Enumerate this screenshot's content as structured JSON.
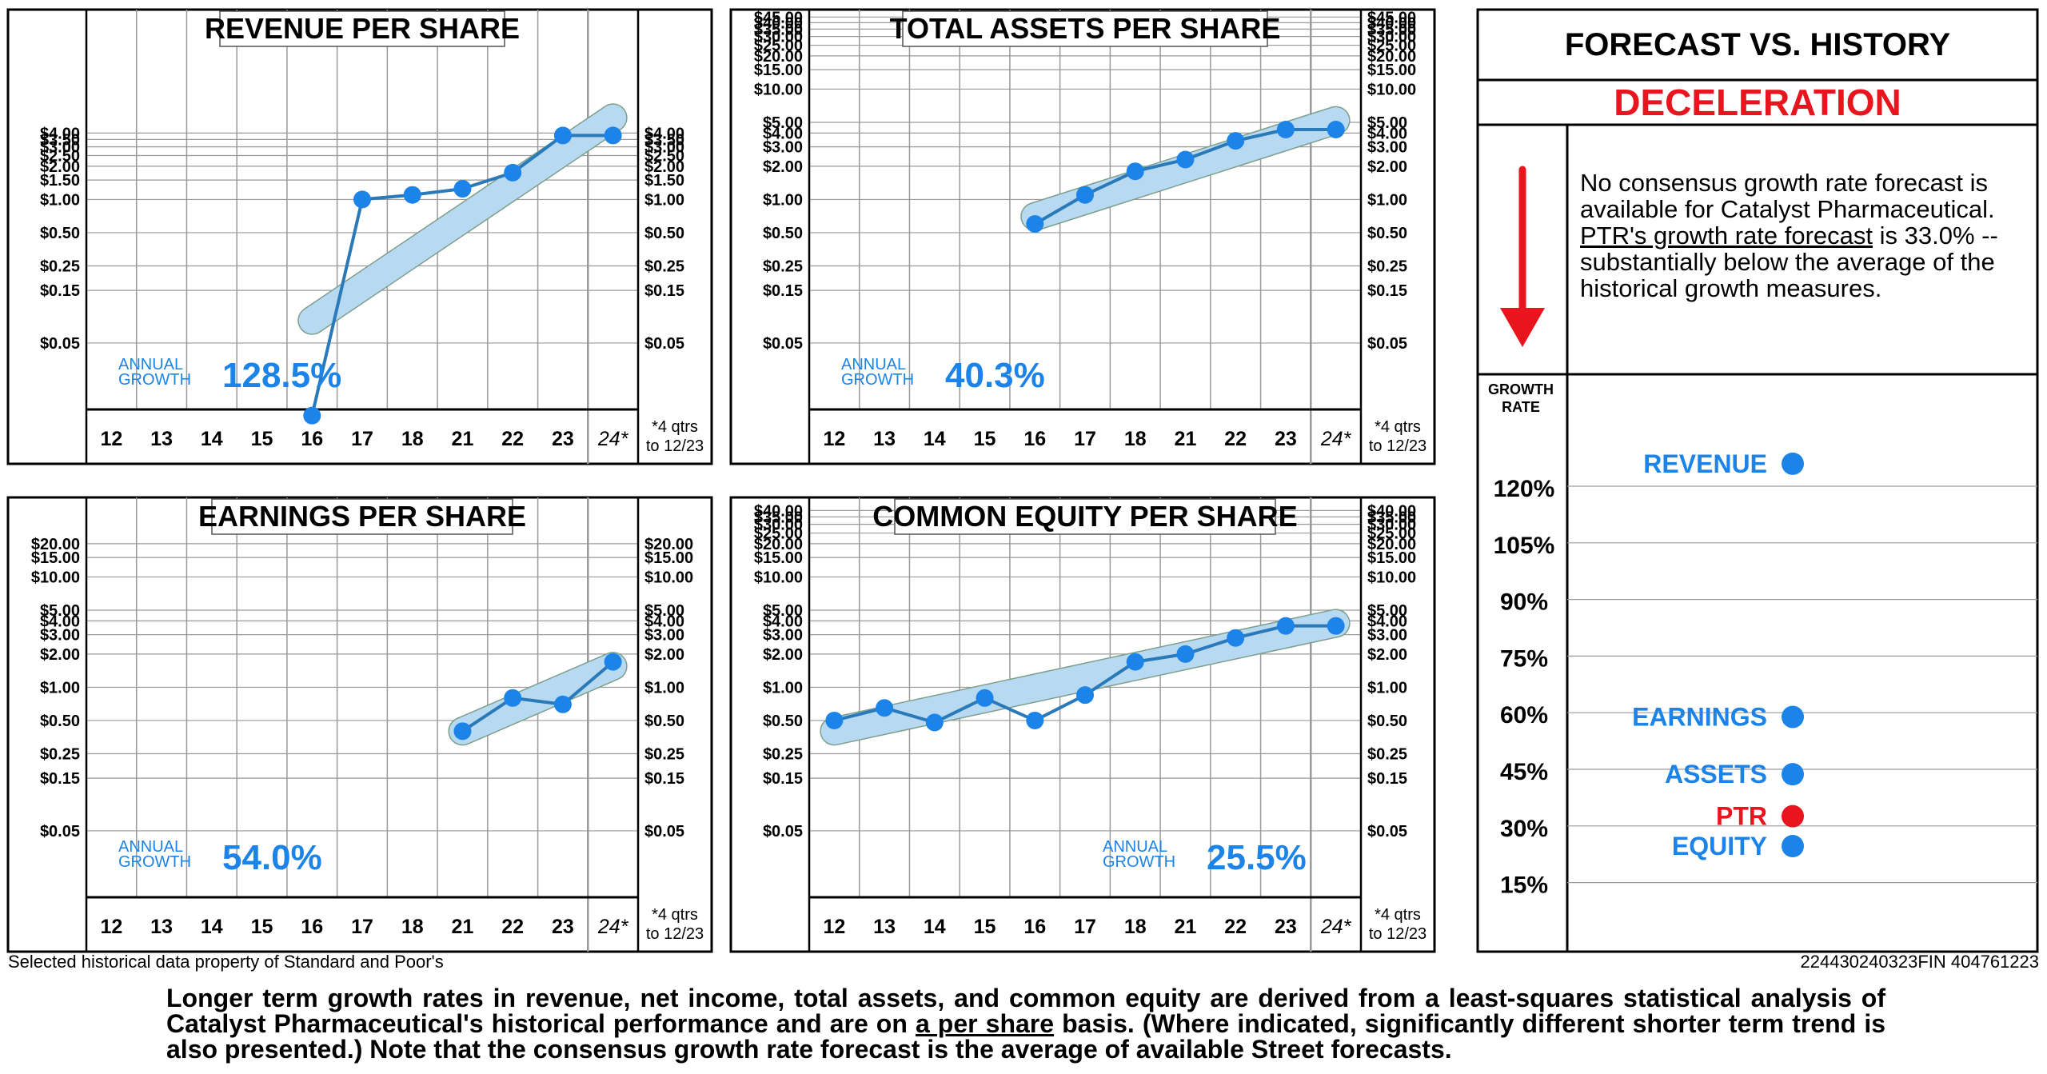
{
  "colors": {
    "accent": "#1c83e8",
    "line": "#2a79b8",
    "band": "#b7d9f2",
    "red": "#e8141e",
    "grid": "#9a9a9a"
  },
  "common": {
    "x_labels": [
      "12",
      "13",
      "14",
      "15",
      "16",
      "17",
      "18",
      "21",
      "22",
      "23",
      "24*"
    ],
    "note_line1": "*4 qtrs",
    "note_line2": "to 12/23",
    "growth_label_line1": "ANNUAL",
    "growth_label_line2": "GROWTH"
  },
  "chart_data": [
    {
      "type": "line",
      "id": "revenue",
      "title": "REVENUE PER SHARE",
      "yscale": "log",
      "tick_labels": [
        "$4.00",
        "$3.50",
        "$3.00",
        "$2.50",
        "$2.00",
        "$1.50",
        "$1.00",
        "$0.50",
        "$0.25",
        "$0.15",
        "$0.05"
      ],
      "x": [
        "16",
        "17",
        "18",
        "21",
        "22",
        "23",
        "24*"
      ],
      "y": [
        0.011,
        1.0,
        1.1,
        1.25,
        1.75,
        3.8,
        3.8
      ],
      "trend": [
        0.08,
        5.5
      ],
      "growth": "128.5%"
    },
    {
      "type": "line",
      "id": "assets",
      "title": "TOTAL ASSETS PER SHARE",
      "yscale": "log",
      "tick_labels": [
        "$45.00",
        "$40.00",
        "$35.00",
        "$30.00",
        "$25.00",
        "$20.00",
        "$15.00",
        "$10.00",
        "$5.00",
        "$4.00",
        "$3.00",
        "$2.00",
        "$1.00",
        "$0.50",
        "$0.25",
        "$0.15",
        "$0.05"
      ],
      "x": [
        "16",
        "17",
        "18",
        "21",
        "22",
        "23",
        "24*"
      ],
      "y": [
        0.6,
        1.1,
        1.8,
        2.3,
        3.4,
        4.3,
        4.3
      ],
      "trend": [
        0.7,
        5.2
      ],
      "growth": "40.3%"
    },
    {
      "type": "line",
      "id": "earnings",
      "title": "EARNINGS PER SHARE",
      "yscale": "log",
      "tick_labels": [
        "$20.00",
        "$15.00",
        "$10.00",
        "$5.00",
        "$4.00",
        "$3.00",
        "$2.00",
        "$1.00",
        "$0.50",
        "$0.25",
        "$0.15",
        "$0.05"
      ],
      "x": [
        "21",
        "22",
        "23",
        "24*"
      ],
      "y": [
        0.4,
        0.8,
        0.7,
        1.7
      ],
      "trend": [
        0.4,
        1.55
      ],
      "growth": "54.0%"
    },
    {
      "type": "line",
      "id": "equity",
      "title": "COMMON EQUITY PER SHARE",
      "yscale": "log",
      "tick_labels": [
        "$40.00",
        "$35.00",
        "$30.00",
        "$25.00",
        "$20.00",
        "$15.00",
        "$10.00",
        "$5.00",
        "$4.00",
        "$3.00",
        "$2.00",
        "$1.00",
        "$0.50",
        "$0.25",
        "$0.15",
        "$0.05"
      ],
      "x": [
        "12",
        "13",
        "14",
        "15",
        "16",
        "17",
        "18",
        "21",
        "22",
        "23",
        "24*"
      ],
      "y": [
        0.5,
        0.65,
        0.48,
        0.8,
        0.5,
        0.85,
        1.7,
        2.0,
        2.8,
        3.6,
        3.6
      ],
      "trend": [
        0.4,
        3.8
      ],
      "growth": "25.5%"
    },
    {
      "type": "scatter",
      "id": "forecast",
      "ylabel": "GROWTH RATE",
      "tick_labels": [
        "120%",
        "105%",
        "90%",
        "75%",
        "60%",
        "45%",
        "30%",
        "15%"
      ],
      "points": [
        {
          "name": "REVENUE",
          "value": 128.5
        },
        {
          "name": "EARNINGS",
          "value": 54.0
        },
        {
          "name": "ASSETS",
          "value": 40.3
        },
        {
          "name": "PTR",
          "value": 33.0
        },
        {
          "name": "EQUITY",
          "value": 25.5
        }
      ]
    }
  ],
  "forecast": {
    "title": "FORECAST VS. HISTORY",
    "verdict": "DECELERATION",
    "text_a": "No consensus growth rate forecast is available for Catalyst Pharmaceutical.  ",
    "text_u": "PTR's growth rate forecast",
    "text_b": " is 33.0% --  substantially below the average of the historical growth measures.",
    "gr_line1": "GROWTH",
    "gr_line2": "RATE"
  },
  "footer": {
    "credit": "Selected historical data property of Standard and Poor's",
    "id": "224430240323FIN 404761223",
    "bottom_a": "Longer term growth rates in revenue, net income, total assets, and common equity are derived from a least-squares  statistical analysis of Catalyst Pharmaceutical's historical performance and are on ",
    "bottom_u": "a per share",
    "bottom_b": " basis. (Where indicated, significantly different shorter term trend is also presented.) Note that the consensus growth rate forecast is the average of available Street forecasts."
  }
}
